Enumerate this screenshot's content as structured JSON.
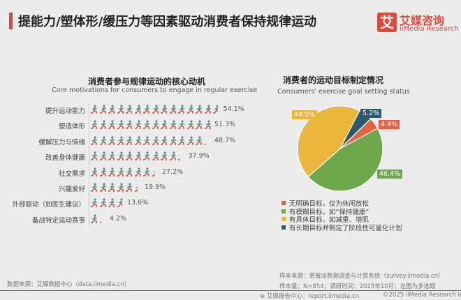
{
  "header": {
    "title": "提能力/塑体形/缓压力等因素驱动消费者保持规律运动",
    "logo_mark": "艾",
    "logo_cn": "艾媒咨询",
    "logo_en": "iiMedia Research"
  },
  "chart_data": [
    {
      "type": "bar",
      "style": "pictogram",
      "title": "消费者参与规律运动的核心动机",
      "subtitle": "Core motivations for consumers to engage in regular exercise",
      "categories": [
        "提升运动能力",
        "塑造体形",
        "缓解压力与情绪",
        "改善身体健康",
        "社交需求",
        "兴趣爱好",
        "外部驱动（如医生建议）",
        "备战特定运动赛事"
      ],
      "values": [
        54.1,
        51.3,
        48.7,
        37.9,
        27.2,
        19.9,
        13.6,
        4.2
      ],
      "labels": [
        "54.1%",
        "51.3%",
        "48.7%",
        "37.9%",
        "27.2%",
        "19.9%",
        "13.6%",
        "4.2%"
      ]
    },
    {
      "type": "pie",
      "title": "消费者的运动目标制定情况",
      "subtitle": "Consumers' exercise goal setting status",
      "slices": [
        {
          "name": "有长期目标并制定了阶段性可量化计划",
          "value": 5.2,
          "label": "5.2%",
          "color": "#2f5a6e"
        },
        {
          "name": "无明确目标，仅为休闲放松",
          "value": 4.4,
          "label": "4.4%",
          "color": "#e8613f"
        },
        {
          "name": "有模糊目标，如“保持健康”",
          "value": 46.4,
          "label": "46.4%",
          "color": "#6ea84a"
        },
        {
          "name": "有具体目标，如减重、增肌",
          "value": 44.0,
          "label": "44.0%",
          "color": "#ebb63c"
        }
      ],
      "legend_order": [
        1,
        2,
        3,
        0
      ],
      "legend_position": "bottom"
    }
  ],
  "footer": {
    "source_left": "数据来源：艾媒数据中心（data.iimedia.cn）",
    "sample_source": "样本来源：草莓派数据调查与计算系统（survey.iimedia.cn）",
    "sample_size": "样本量：N=854；调研时间：2025年10月；左图为多选题",
    "report_center": "艾媒报告中心：report.iimedia.cn",
    "copyright": "©2025  iiMedia Research  Inc"
  }
}
